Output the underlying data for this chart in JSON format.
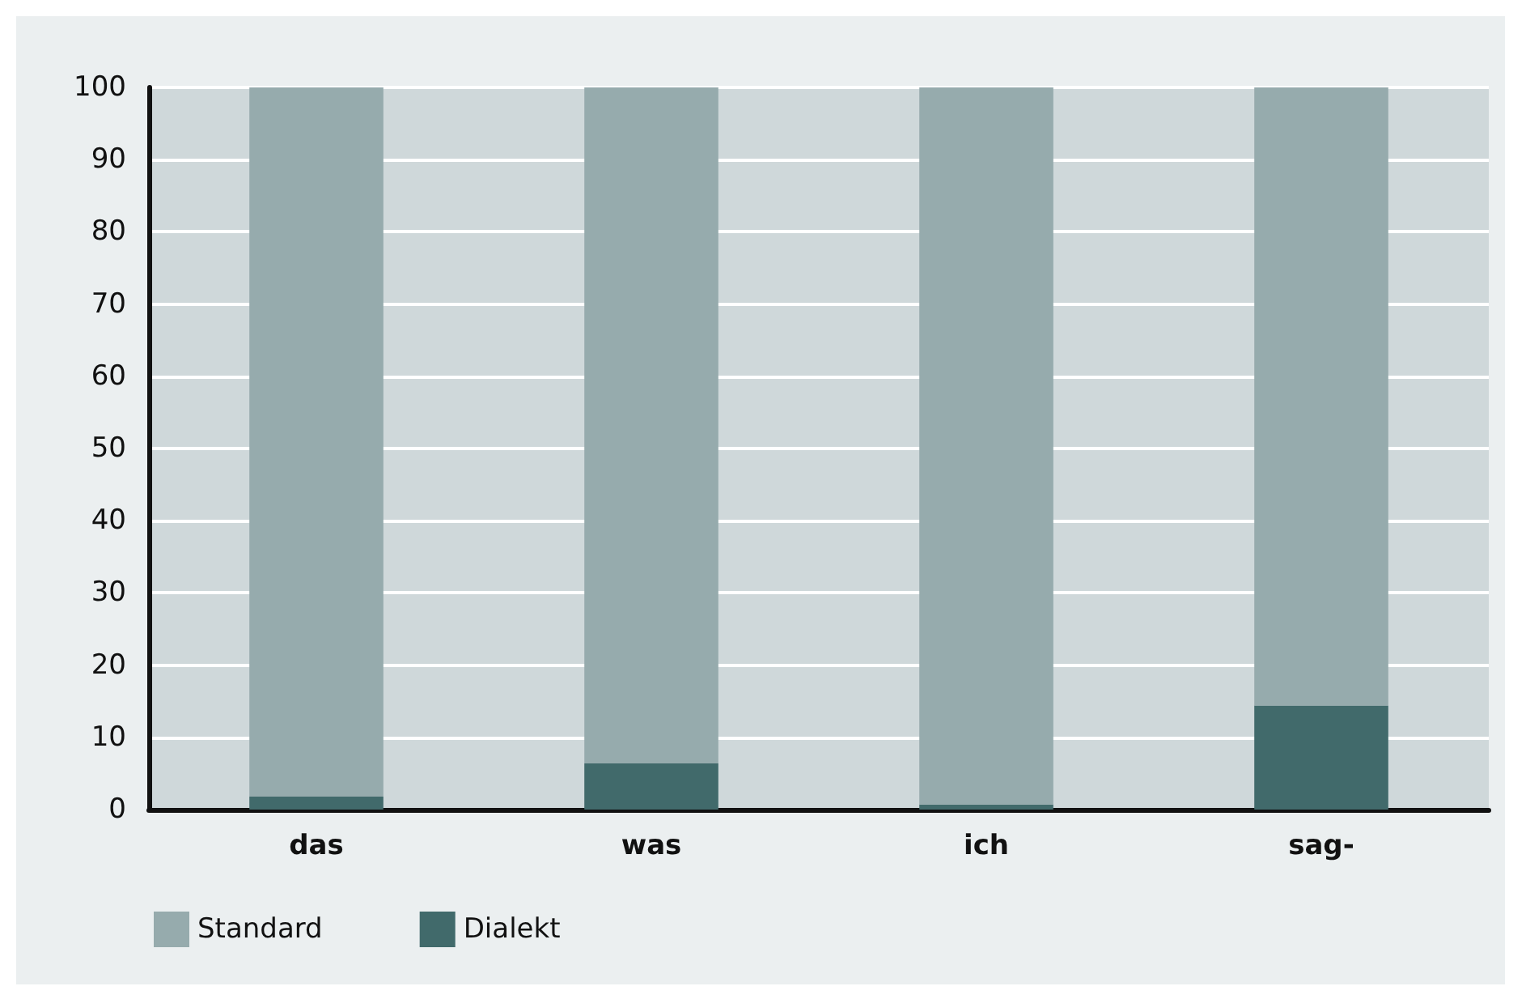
{
  "chart_data": {
    "type": "bar",
    "stacked": true,
    "categories": [
      "das",
      "was",
      "ich",
      "sag-"
    ],
    "series": [
      {
        "name": "Dialekt",
        "color": "#416a6b",
        "values": [
          1.8,
          6.4,
          0.7,
          14.4
        ]
      },
      {
        "name": "Standard",
        "color": "#96abad",
        "values": [
          98.2,
          93.6,
          99.3,
          85.6
        ]
      }
    ],
    "ylim": [
      0,
      100
    ],
    "yticks": [
      0,
      10,
      20,
      30,
      40,
      50,
      60,
      70,
      80,
      90,
      100
    ],
    "grid": "y",
    "legend": "bottom left"
  }
}
